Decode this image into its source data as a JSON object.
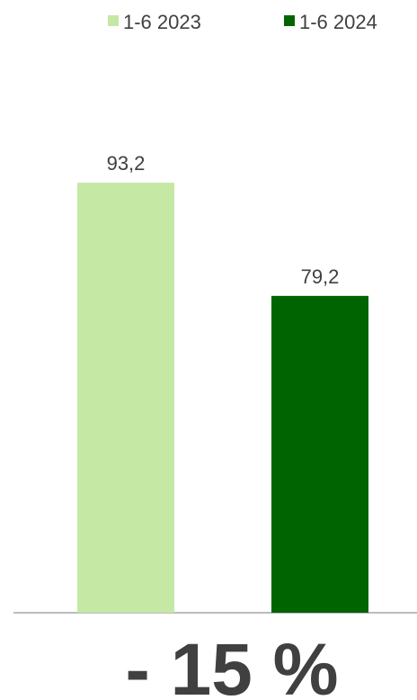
{
  "chart_data": {
    "type": "bar",
    "series": [
      {
        "name": "1-6 2023",
        "color": "#c5e8a5",
        "values": [
          93.2
        ],
        "value_labels": [
          "93,2"
        ]
      },
      {
        "name": "1-6 2024",
        "color": "#006400",
        "values": [
          79.2
        ],
        "value_labels": [
          "79,2"
        ]
      }
    ],
    "ylim": [
      40,
      100
    ],
    "annotation": "- 15 %"
  }
}
